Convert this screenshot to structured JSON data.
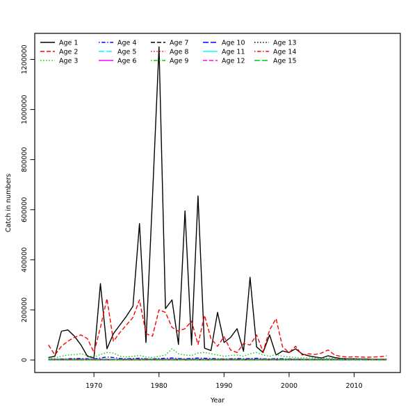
{
  "figure": {
    "background": "#ffffff",
    "xlabel": "Year",
    "ylabel": "Catch in numbers"
  },
  "chart_data": {
    "type": "line",
    "title": "",
    "xlabel": "Year",
    "ylabel": "Catch in numbers",
    "legend_position": "top-left-inside",
    "legend_columns": 5,
    "grid": false,
    "xlim": [
      1960.9,
      2017.1
    ],
    "ylim": [
      -50000,
      1304000
    ],
    "x_ticks": [
      1970,
      1980,
      1990,
      2000,
      2010
    ],
    "y_ticks": [
      0,
      200000,
      400000,
      600000,
      800000,
      1000000,
      1200000
    ],
    "palette": {
      "black": "#000000",
      "red": "#FF0000",
      "green": "#00CD00",
      "blue": "#0000FF",
      "cyan": "#00FFFF",
      "magenta": "#FF00FF"
    },
    "years": [
      1963,
      1964,
      1965,
      1966,
      1967,
      1968,
      1969,
      1970,
      1971,
      1972,
      1973,
      1974,
      1975,
      1976,
      1977,
      1978,
      1979,
      1980,
      1981,
      1982,
      1983,
      1984,
      1985,
      1986,
      1987,
      1988,
      1989,
      1990,
      1991,
      1992,
      1993,
      1994,
      1995,
      1996,
      1997,
      1998,
      1999,
      2000,
      2001,
      2002,
      2003,
      2004,
      2005,
      2006,
      2007,
      2008,
      2009,
      2010,
      2011,
      2012,
      2013,
      2014,
      2015
    ],
    "series": [
      {
        "name": "Age 1",
        "color": "#000000",
        "linetype": "solid",
        "values": [
          10000,
          15000,
          115000,
          120000,
          95000,
          60000,
          15000,
          8000,
          305000,
          45000,
          105000,
          140000,
          175000,
          215000,
          545000,
          70000,
          650000,
          1250000,
          205000,
          240000,
          62000,
          595000,
          60000,
          655000,
          47000,
          38000,
          190000,
          70000,
          90000,
          125000,
          35000,
          330000,
          52000,
          30000,
          100000,
          20000,
          36000,
          30000,
          45000,
          24000,
          17000,
          12000,
          8000,
          17000,
          10000,
          6000,
          5000,
          5000,
          4000,
          4000,
          3000,
          3000,
          3000
        ]
      },
      {
        "name": "Age 2",
        "color": "#FF0000",
        "linetype": "dashed",
        "values": [
          60000,
          20000,
          55000,
          75000,
          90000,
          100000,
          85000,
          30000,
          130000,
          245000,
          75000,
          110000,
          140000,
          170000,
          240000,
          105000,
          95000,
          200000,
          190000,
          130000,
          115000,
          125000,
          155000,
          62000,
          178000,
          85000,
          55000,
          93000,
          40000,
          30000,
          66000,
          60000,
          100000,
          33000,
          120000,
          165000,
          52000,
          30000,
          55000,
          20000,
          25000,
          22000,
          28000,
          40000,
          20000,
          14000,
          12000,
          13000,
          12000,
          11000,
          12000,
          13000,
          17000
        ]
      },
      {
        "name": "Age 3",
        "color": "#00CD00",
        "linetype": "dotted",
        "values": [
          5000,
          8000,
          15000,
          20000,
          22000,
          25000,
          18000,
          12000,
          22000,
          30000,
          28000,
          15000,
          12000,
          15000,
          18000,
          12000,
          10000,
          15000,
          20000,
          45000,
          25000,
          20000,
          18000,
          28000,
          30000,
          25000,
          20000,
          15000,
          18000,
          20000,
          15000,
          25000,
          30000,
          20000,
          15000,
          22000,
          15000,
          12000,
          10000,
          8000,
          10000,
          8000,
          6000,
          8000,
          6000,
          5000,
          4000,
          5000,
          4000,
          3000,
          4000,
          3000,
          4000
        ]
      },
      {
        "name": "Age 4",
        "color": "#0000FF",
        "linetype": "dotdash",
        "values": [
          2000,
          3000,
          4000,
          5000,
          6000,
          6000,
          5000,
          4000,
          8000,
          12000,
          10000,
          6000,
          5000,
          6000,
          7000,
          5000,
          4000,
          6000,
          7000,
          8000,
          6000,
          5000,
          6000,
          8000,
          7000,
          6000,
          5000,
          4000,
          5000,
          6000,
          5000,
          6000,
          7000,
          5000,
          4000,
          6000,
          5000,
          4000,
          4000,
          3000,
          3000,
          3000,
          2000,
          3000,
          2000,
          2000,
          2000,
          2000,
          2000,
          2000,
          2000,
          2000,
          2000
        ]
      },
      {
        "name": "Age 5",
        "color": "#00FFFF",
        "linetype": "longdash",
        "flat": 3000
      },
      {
        "name": "Age 6",
        "color": "#FF00FF",
        "linetype": "solid",
        "flat": 2500
      },
      {
        "name": "Age 7",
        "color": "#000000",
        "linetype": "dashed",
        "flat": 2000
      },
      {
        "name": "Age 8",
        "color": "#FF0000",
        "linetype": "dotted",
        "flat": 1600
      },
      {
        "name": "Age 9",
        "color": "#00CD00",
        "linetype": "dotdash",
        "flat": 1300
      },
      {
        "name": "Age 10",
        "color": "#0000FF",
        "linetype": "longdash",
        "flat": 1000
      },
      {
        "name": "Age 11",
        "color": "#00FFFF",
        "linetype": "solid",
        "flat": 800
      },
      {
        "name": "Age 12",
        "color": "#FF00FF",
        "linetype": "dashed",
        "flat": 600
      },
      {
        "name": "Age 13",
        "color": "#000000",
        "linetype": "dotted",
        "flat": 500
      },
      {
        "name": "Age 14",
        "color": "#FF0000",
        "linetype": "dotdash",
        "flat": 400
      },
      {
        "name": "Age 15",
        "color": "#00CD00",
        "linetype": "longdash",
        "flat": 300
      }
    ]
  }
}
